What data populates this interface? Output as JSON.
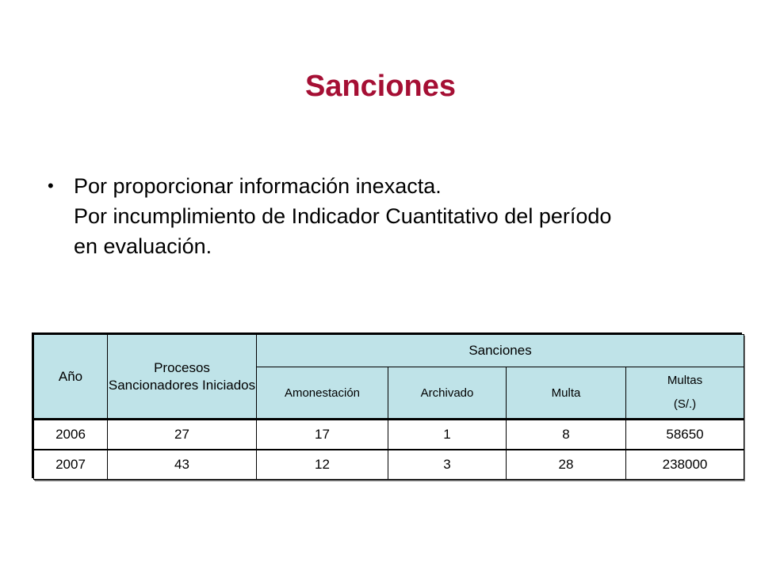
{
  "slide": {
    "title": "Sanciones",
    "bullet_lines": [
      "Por proporcionar información inexacta.",
      "Por incumplimiento de Indicador Cuantitativo del período",
      "en evaluación."
    ]
  },
  "table": {
    "headers": {
      "year": "Año",
      "processes": "Procesos Sancionadores Iniciados",
      "sanctions": "Sanciones",
      "amonestacion": "Amonestación",
      "archivado": "Archivado",
      "multa": "Multa",
      "multas_label": "Multas",
      "multas_unit": "(S/.)"
    },
    "rows": [
      [
        "2006",
        "27",
        "17",
        "1",
        "8",
        "58650"
      ],
      [
        "2007",
        "43",
        "12",
        "3",
        "28",
        "238000"
      ]
    ]
  },
  "colors": {
    "title": "#a50f34",
    "header_bg": "#bfe3e8"
  }
}
